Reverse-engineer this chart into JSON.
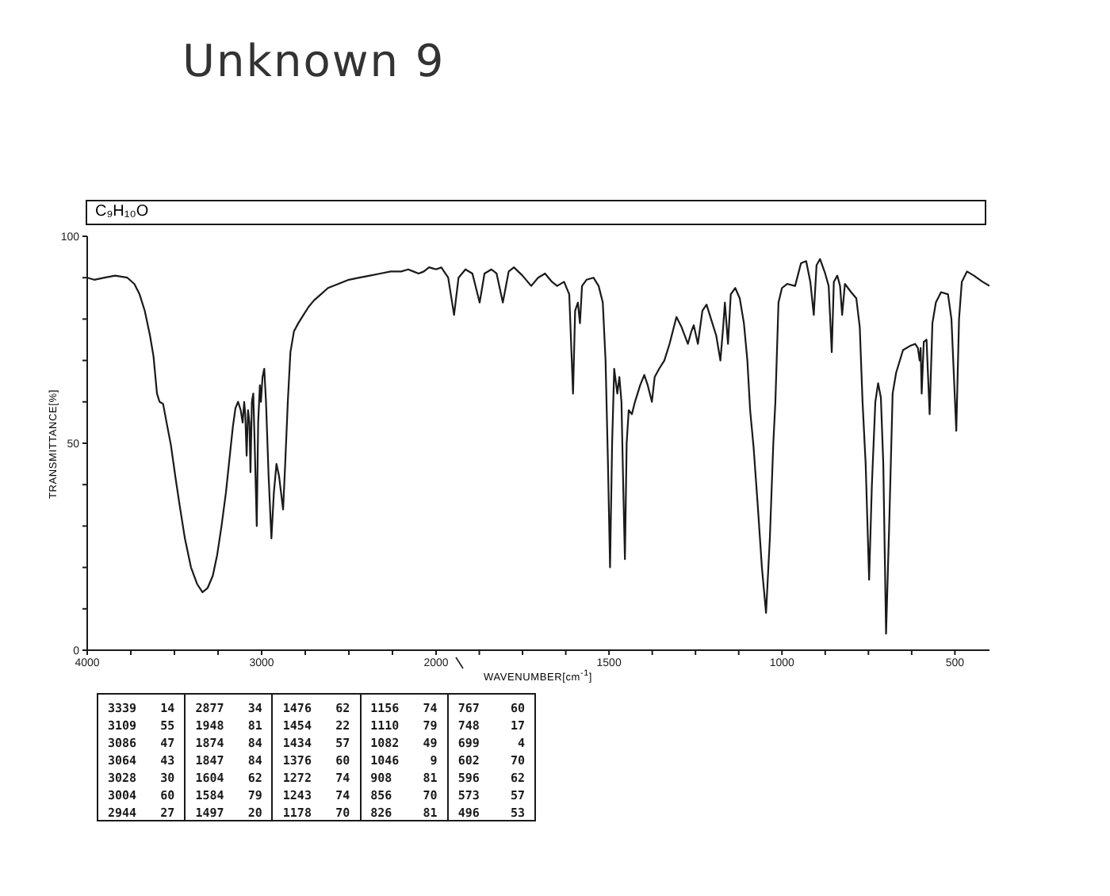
{
  "chart_data": [
    {
      "type": "line",
      "title": "Unknown 9",
      "subtitle": "C₉H₁₀O",
      "ylabel": "TRANSMITTANCE[%]",
      "annotations": [
        "3339 14",
        "3109 55",
        "3086 47",
        "3064 43",
        "3028 30",
        "3004 60",
        "2944 27",
        "2877 34",
        "1948 81",
        "1874 84",
        "1847 84",
        "1604 62",
        "1584 79",
        "1497 20",
        "1476 62",
        "1454 22",
        "1434 57",
        "1376 60",
        "1272 74",
        "1243 74",
        "1178 70",
        "1156 74",
        "1110 79",
        "1082 49",
        "1046 9",
        "908 81",
        "856 70",
        "826 81",
        "767 60",
        "748 17",
        "699 4",
        "602 70",
        "596 62",
        "573 57",
        "496 53"
      ],
      "x": [
        4000,
        3960,
        3900,
        3840,
        3770,
        3730,
        3700,
        3670,
        3640,
        3620,
        3600,
        3585,
        3565,
        3545,
        3520,
        3495,
        3470,
        3440,
        3405,
        3370,
        3339,
        3310,
        3280,
        3255,
        3230,
        3205,
        3185,
        3165,
        3150,
        3135,
        3120,
        3109,
        3100,
        3094,
        3086,
        3078,
        3070,
        3064,
        3056,
        3048,
        3040,
        3028,
        3020,
        3010,
        3004,
        2995,
        2985,
        2975,
        2960,
        2944,
        2930,
        2915,
        2900,
        2877,
        2865,
        2850,
        2835,
        2815,
        2790,
        2760,
        2730,
        2700,
        2660,
        2620,
        2560,
        2500,
        2440,
        2380,
        2320,
        2260,
        2200,
        2160,
        2130,
        2100,
        2070,
        2040,
        2000
      ],
      "series": [
        {
          "color": "#1a1a1a",
          "values": [
            90,
            89.5,
            90,
            90.5,
            90,
            88.5,
            86,
            82,
            76,
            71,
            62,
            60,
            59.5,
            55,
            49.5,
            42,
            35,
            27,
            20,
            16,
            14,
            15,
            18,
            23,
            30,
            38,
            46,
            54,
            58.5,
            60,
            58,
            55,
            60,
            57,
            47,
            58,
            55,
            43,
            60,
            62,
            50,
            30,
            55,
            64,
            60,
            66,
            68,
            60,
            42,
            27,
            38,
            45,
            42,
            34,
            45,
            60,
            72,
            77,
            79,
            81,
            83,
            84.5,
            86,
            87.5,
            88.5,
            89.5,
            90,
            90.5,
            91,
            91.5,
            91.5,
            92,
            91.5,
            91,
            91.5,
            92.5,
            92
          ]
        }
      ],
      "xlim": [
        4000,
        2000
      ],
      "xticks": [
        4000,
        {
          "value": 3750,
          "label": null
        },
        {
          "value": 3500,
          "label": null
        },
        {
          "value": 3250,
          "label": null
        },
        3000,
        {
          "value": 2750,
          "label": null
        },
        {
          "value": 2500,
          "label": null
        },
        {
          "value": 2250,
          "label": null
        },
        2000
      ],
      "ylim": [
        0,
        100
      ],
      "yticks": [
        0,
        {
          "value": 10,
          "label": null
        },
        {
          "value": 20,
          "label": null
        },
        {
          "value": 30,
          "label": null
        },
        {
          "value": 40,
          "label": null
        },
        50,
        {
          "value": 60,
          "label": null
        },
        {
          "value": 70,
          "label": null
        },
        {
          "value": 80,
          "label": null
        },
        {
          "value": 90,
          "label": null
        },
        100
      ]
    },
    {
      "type": "line",
      "xlabel": "WAVENUMBER[cm$^{-1}$]",
      "x": [
        2000,
        1985,
        1965,
        1948,
        1935,
        1915,
        1895,
        1874,
        1860,
        1840,
        1825,
        1807,
        1790,
        1775,
        1750,
        1725,
        1705,
        1685,
        1665,
        1650,
        1630,
        1615,
        1604,
        1598,
        1590,
        1584,
        1578,
        1565,
        1545,
        1530,
        1518,
        1510,
        1503,
        1497,
        1491,
        1485,
        1476,
        1470,
        1464,
        1459,
        1454,
        1449,
        1443,
        1434,
        1425,
        1410,
        1398,
        1388,
        1376,
        1368,
        1355,
        1340,
        1325,
        1305,
        1290,
        1272,
        1262,
        1255,
        1243,
        1230,
        1218,
        1205,
        1190,
        1178,
        1170,
        1165,
        1156,
        1148,
        1135,
        1122,
        1110,
        1100,
        1092,
        1082,
        1070,
        1058,
        1046,
        1035,
        1025,
        1019,
        1010,
        1000,
        985,
        962,
        945,
        930,
        918,
        908,
        900,
        890,
        875,
        865,
        856,
        850,
        840,
        832,
        826,
        818,
        800,
        785,
        775,
        767,
        758,
        748,
        740,
        730,
        722,
        714,
        707,
        699,
        690,
        680,
        670,
        650,
        630,
        615,
        607,
        602,
        599,
        596,
        590,
        582,
        573,
        565,
        555,
        540,
        520,
        510,
        496,
        488,
        480,
        465,
        445,
        420,
        400
      ],
      "series": [
        {
          "color": "#1a1a1a",
          "values": [
            92,
            92.5,
            90,
            81,
            90,
            92,
            91,
            84,
            91,
            92,
            91,
            84,
            91.5,
            92.5,
            90.5,
            88,
            90,
            91,
            89,
            88,
            89,
            86,
            62,
            82,
            84,
            79,
            88,
            89.5,
            90,
            88,
            84,
            70,
            45,
            20,
            50,
            68,
            62,
            66,
            60,
            40,
            22,
            50,
            58,
            57,
            60,
            64,
            66.5,
            64,
            60,
            66,
            68,
            70,
            74,
            80.5,
            78,
            74,
            77,
            78.5,
            74,
            82,
            83.5,
            80,
            76,
            70,
            78,
            84,
            74,
            86,
            87.5,
            85,
            79,
            70,
            58,
            49,
            35,
            20,
            9,
            27,
            50,
            60,
            84,
            87.5,
            88.5,
            88,
            93.5,
            94,
            89,
            81,
            93,
            94.5,
            91,
            88,
            72,
            89,
            90.5,
            88,
            81,
            88.5,
            86.5,
            85,
            78,
            60,
            45,
            17,
            40,
            60,
            64.5,
            61,
            45,
            4,
            30,
            62,
            67,
            72.5,
            73.5,
            74,
            73,
            70,
            73,
            62,
            74.5,
            75,
            57,
            79,
            84,
            86.5,
            86,
            80,
            53,
            80,
            89,
            91.5,
            90.5,
            89,
            88
          ]
        }
      ],
      "xlim": [
        2000,
        400
      ],
      "xticks": [
        {
          "value": 1875,
          "label": null
        },
        {
          "value": 1750,
          "label": null
        },
        {
          "value": 1625,
          "label": null
        },
        1500,
        {
          "value": 1375,
          "label": null
        },
        {
          "value": 1250,
          "label": null
        },
        {
          "value": 1125,
          "label": null
        },
        1000,
        {
          "value": 875,
          "label": null
        },
        {
          "value": 750,
          "label": null
        },
        {
          "value": 625,
          "label": null
        },
        500
      ],
      "ylim": [
        0,
        100
      ],
      "tick_labels": "x"
    }
  ]
}
